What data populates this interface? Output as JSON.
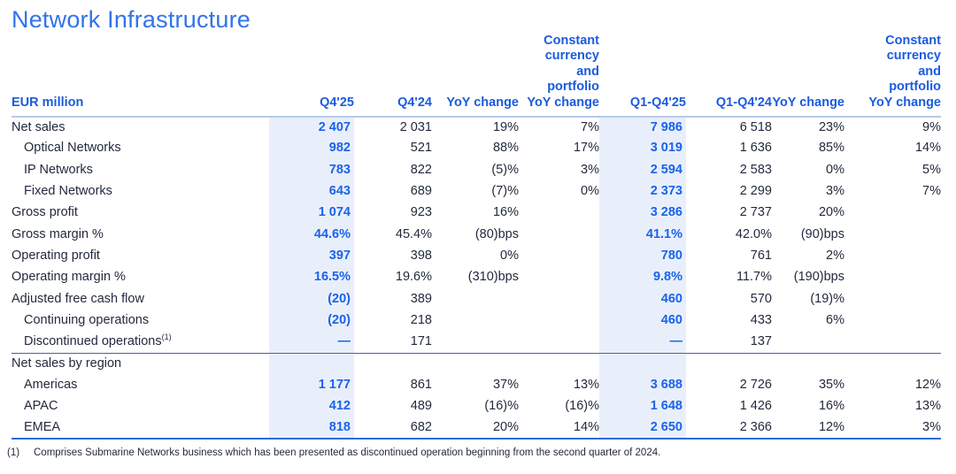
{
  "page": {
    "title": "Network Infrastructure"
  },
  "colors": {
    "title_blue": "#3173EA",
    "header_blue": "#1A5BDF",
    "value_blue": "#1A63EA",
    "text_dark": "#232A3E",
    "highlight_bg": "#E9EFFA",
    "header_rule": "#B6C9EA",
    "section_rule": "#44639E",
    "bottom_rule": "#2E6BD8"
  },
  "table": {
    "unit_label": "EUR million",
    "columns": [
      "Q4'25",
      "Q4'24",
      "YoY change",
      "Constant\ncurrency\nand\nportfolio\nYoY change",
      "Q1-Q4'25",
      "Q1-Q4'24",
      "YoY change",
      "Constant\ncurrency\nand\nportfolio\nYoY change"
    ],
    "highlighted_columns": [
      "Q4'25",
      "Q1-Q4'25"
    ],
    "rows": [
      {
        "label": "Net sales",
        "indent": false,
        "section": false,
        "values": [
          "2 407",
          "2 031",
          "19%",
          "7%",
          "7 986",
          "6 518",
          "23%",
          "9%"
        ]
      },
      {
        "label": "Optical Networks",
        "indent": true,
        "section": false,
        "values": [
          "982",
          "521",
          "88%",
          "17%",
          "3 019",
          "1 636",
          "85%",
          "14%"
        ]
      },
      {
        "label": "IP Networks",
        "indent": true,
        "section": false,
        "values": [
          "783",
          "822",
          "(5)%",
          "3%",
          "2 594",
          "2 583",
          "0%",
          "5%"
        ]
      },
      {
        "label": "Fixed Networks",
        "indent": true,
        "section": false,
        "values": [
          "643",
          "689",
          "(7)%",
          "0%",
          "2 373",
          "2 299",
          "3%",
          "7%"
        ]
      },
      {
        "label": "Gross profit",
        "indent": false,
        "section": false,
        "values": [
          "1 074",
          "923",
          "16%",
          "",
          "3 286",
          "2 737",
          "20%",
          ""
        ]
      },
      {
        "label": "Gross margin %",
        "indent": false,
        "section": false,
        "values": [
          "44.6%",
          "45.4%",
          "(80)bps",
          "",
          "41.1%",
          "42.0%",
          "(90)bps",
          ""
        ]
      },
      {
        "label": "Operating profit",
        "indent": false,
        "section": false,
        "values": [
          "397",
          "398",
          "0%",
          "",
          "780",
          "761",
          "2%",
          ""
        ]
      },
      {
        "label": "Operating margin %",
        "indent": false,
        "section": false,
        "values": [
          "16.5%",
          "19.6%",
          "(310)bps",
          "",
          "9.8%",
          "11.7%",
          "(190)bps",
          ""
        ]
      },
      {
        "label": "Adjusted free cash flow",
        "indent": false,
        "section": false,
        "values": [
          "(20)",
          "389",
          "",
          "",
          "460",
          "570",
          "(19)%",
          ""
        ]
      },
      {
        "label": "Continuing operations",
        "indent": true,
        "section": false,
        "values": [
          "(20)",
          "218",
          "",
          "",
          "460",
          "433",
          "6%",
          ""
        ]
      },
      {
        "label": "Discontinued operations",
        "sup": "(1)",
        "indent": true,
        "section": false,
        "values": [
          "—",
          "171",
          "",
          "",
          "—",
          "137",
          "",
          ""
        ]
      },
      {
        "label": "Net sales by region",
        "indent": false,
        "section": true,
        "values": [
          "",
          "",
          "",
          "",
          "",
          "",
          "",
          ""
        ]
      },
      {
        "label": "Americas",
        "indent": true,
        "section": false,
        "values": [
          "1 177",
          "861",
          "37%",
          "13%",
          "3 688",
          "2 726",
          "35%",
          "12%"
        ]
      },
      {
        "label": "APAC",
        "indent": true,
        "section": false,
        "values": [
          "412",
          "489",
          "(16)%",
          "(16)%",
          "1 648",
          "1 426",
          "16%",
          "13%"
        ]
      },
      {
        "label": "EMEA",
        "indent": true,
        "section": false,
        "values": [
          "818",
          "682",
          "20%",
          "14%",
          "2 650",
          "2 366",
          "12%",
          "3%"
        ]
      }
    ]
  },
  "footnote": {
    "marker": "(1)",
    "text": "Comprises Submarine Networks business which has been presented as discontinued operation beginning from the second quarter of 2024."
  }
}
